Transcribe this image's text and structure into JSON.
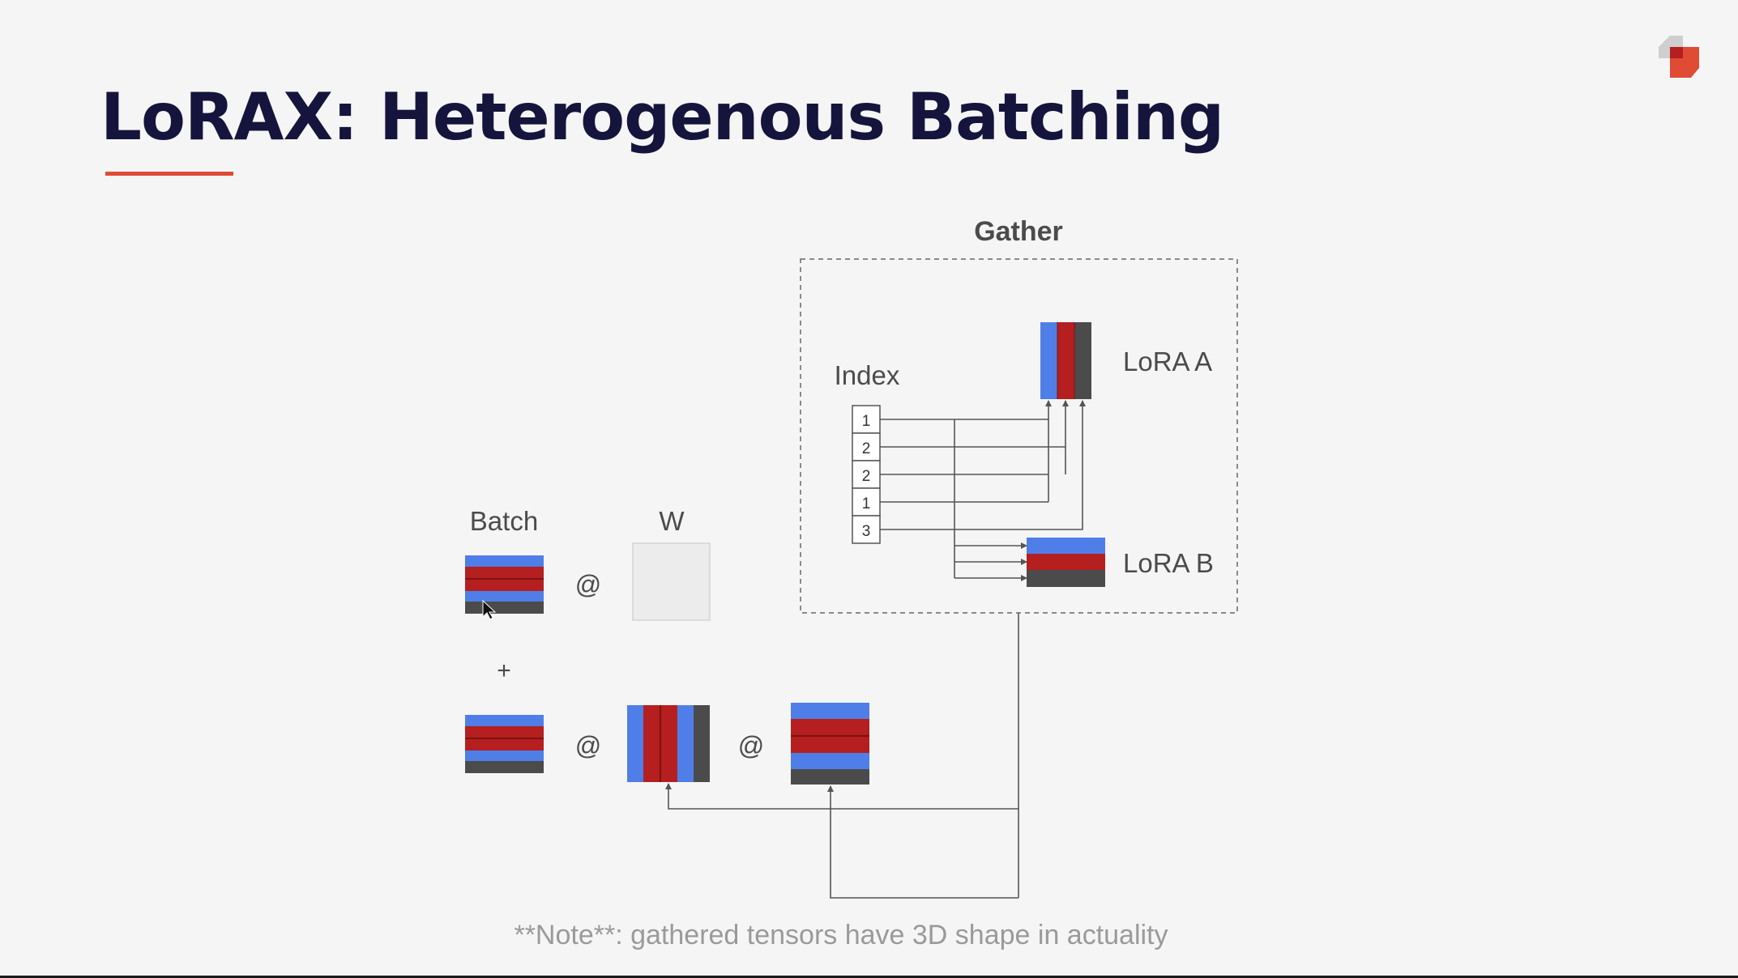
{
  "slide": {
    "title": "LoRAX: Heterogenous Batching",
    "note": "**Note**: gathered tensors have 3D shape in actuality"
  },
  "diagram": {
    "gather_label": "Gather",
    "index_label": "Index",
    "index_values": [
      "1",
      "2",
      "2",
      "1",
      "3"
    ],
    "lora_a_label": "LoRA A",
    "lora_b_label": "LoRA B",
    "batch_label": "Batch",
    "weight_label": "W",
    "matmul_symbol": "@",
    "plus_symbol": "+"
  },
  "colors": {
    "title": "#14143c",
    "accent_underline": "#e04b35",
    "tensor_blue": "#4f7ee8",
    "tensor_red": "#b51f1f",
    "tensor_gray": "#4b4b4b",
    "weight_fill": "#ececec",
    "connector": "#555555"
  }
}
